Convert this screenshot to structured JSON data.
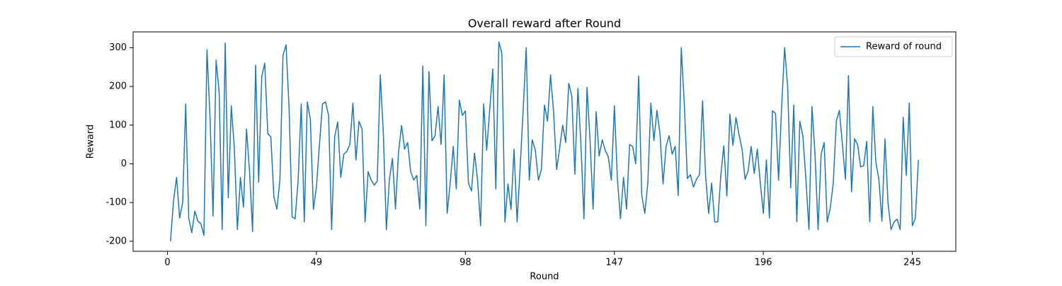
{
  "chart_data": {
    "type": "line",
    "title": "Overall reward after Round",
    "xlabel": "Round",
    "ylabel": "Reward",
    "x": [
      1,
      2,
      3,
      4,
      5,
      6,
      7,
      8,
      9,
      10,
      11,
      12,
      13,
      14,
      15,
      16,
      17,
      18,
      19,
      20,
      21,
      22,
      23,
      24,
      25,
      26,
      27,
      28,
      29,
      30,
      31,
      32,
      33,
      34,
      35,
      36,
      37,
      38,
      39,
      40,
      41,
      42,
      43,
      44,
      45,
      46,
      47,
      48,
      49,
      50,
      51,
      52,
      53,
      54,
      55,
      56,
      57,
      58,
      59,
      60,
      61,
      62,
      63,
      64,
      65,
      66,
      67,
      68,
      69,
      70,
      71,
      72,
      73,
      74,
      75,
      76,
      77,
      78,
      79,
      80,
      81,
      82,
      83,
      84,
      85,
      86,
      87,
      88,
      89,
      90,
      91,
      92,
      93,
      94,
      95,
      96,
      97,
      98,
      99,
      100,
      101,
      102,
      103,
      104,
      105,
      106,
      107,
      108,
      109,
      110,
      111,
      112,
      113,
      114,
      115,
      116,
      117,
      118,
      119,
      120,
      121,
      122,
      123,
      124,
      125,
      126,
      127,
      128,
      129,
      130,
      131,
      132,
      133,
      134,
      135,
      136,
      137,
      138,
      139,
      140,
      141,
      142,
      143,
      144,
      145,
      146,
      147,
      148,
      149,
      150,
      151,
      152,
      153,
      154,
      155,
      156,
      157,
      158,
      159,
      160,
      161,
      162,
      163,
      164,
      165,
      166,
      167,
      168,
      169,
      170,
      171,
      172,
      173,
      174,
      175,
      176,
      177,
      178,
      179,
      180,
      181,
      182,
      183,
      184,
      185,
      186,
      187,
      188,
      189,
      190,
      191,
      192,
      193,
      194,
      195,
      196,
      197,
      198,
      199,
      200,
      201,
      202,
      203,
      204,
      205,
      206,
      207,
      208,
      209,
      210,
      211,
      212,
      213,
      214,
      215,
      216,
      217,
      218,
      219,
      220,
      221,
      222,
      223,
      224,
      225,
      226,
      227,
      228,
      229,
      230,
      231,
      232,
      233,
      234,
      235,
      236,
      237,
      238,
      239,
      240,
      241,
      242,
      243,
      244,
      245,
      246,
      247
    ],
    "series": [
      {
        "name": "Reward of round",
        "color": "#1f77b4",
        "values": [
          -200,
          -95,
          -35,
          -140,
          -100,
          155,
          -140,
          -178,
          -122,
          -148,
          -155,
          -185,
          295,
          120,
          -135,
          268,
          185,
          -170,
          312,
          -88,
          150,
          40,
          -170,
          -35,
          -112,
          90,
          -20,
          -175,
          255,
          -48,
          225,
          260,
          78,
          70,
          -85,
          -117,
          -40,
          280,
          308,
          145,
          -137,
          -142,
          -40,
          155,
          -150,
          160,
          115,
          -118,
          -60,
          50,
          155,
          160,
          125,
          -170,
          70,
          108,
          -35,
          25,
          32,
          50,
          157,
          10,
          110,
          90,
          -150,
          -20,
          -42,
          -55,
          -45,
          230,
          80,
          -170,
          -40,
          14,
          -117,
          30,
          99,
          38,
          55,
          -20,
          -42,
          -30,
          -117,
          253,
          -160,
          238,
          60,
          72,
          148,
          50,
          230,
          -128,
          -50,
          45,
          -65,
          165,
          125,
          137,
          -50,
          -70,
          28,
          -42,
          -160,
          155,
          35,
          140,
          245,
          -65,
          315,
          285,
          -150,
          -52,
          -118,
          38,
          -150,
          -10,
          140,
          300,
          -42,
          62,
          35,
          -42,
          -15,
          152,
          110,
          230,
          135,
          -15,
          40,
          100,
          55,
          208,
          175,
          -27,
          195,
          50,
          -142,
          198,
          60,
          -117,
          135,
          20,
          62,
          35,
          18,
          -42,
          150,
          -40,
          -142,
          -35,
          -117,
          50,
          45,
          0,
          227,
          -80,
          -128,
          -50,
          157,
          60,
          138,
          78,
          -52,
          45,
          73,
          25,
          45,
          -82,
          300,
          155,
          -38,
          -28,
          -60,
          -40,
          -28,
          163,
          -30,
          -128,
          -50,
          -150,
          -150,
          -30,
          47,
          -83,
          128,
          48,
          120,
          75,
          38,
          -40,
          -18,
          45,
          -25,
          38,
          -50,
          -128,
          10,
          -140,
          137,
          130,
          -42,
          145,
          300,
          198,
          -62,
          152,
          -150,
          110,
          72,
          -40,
          -170,
          148,
          25,
          -170,
          25,
          55,
          -150,
          -115,
          -50,
          110,
          138,
          50,
          -40,
          228,
          -72,
          65,
          50,
          -8,
          -5,
          58,
          -150,
          148,
          5,
          -40,
          -148,
          65,
          -100,
          -170,
          -150,
          -143,
          -170,
          120,
          -30,
          157,
          -160,
          -140,
          10
        ]
      }
    ],
    "xlim": [
      -11.3,
      259.3
    ],
    "ylim": [
      -226,
      341
    ],
    "xticks": [
      0,
      49,
      98,
      147,
      196,
      245
    ],
    "yticks": [
      -200,
      -100,
      0,
      100,
      200,
      300
    ],
    "legend": "upper right"
  }
}
